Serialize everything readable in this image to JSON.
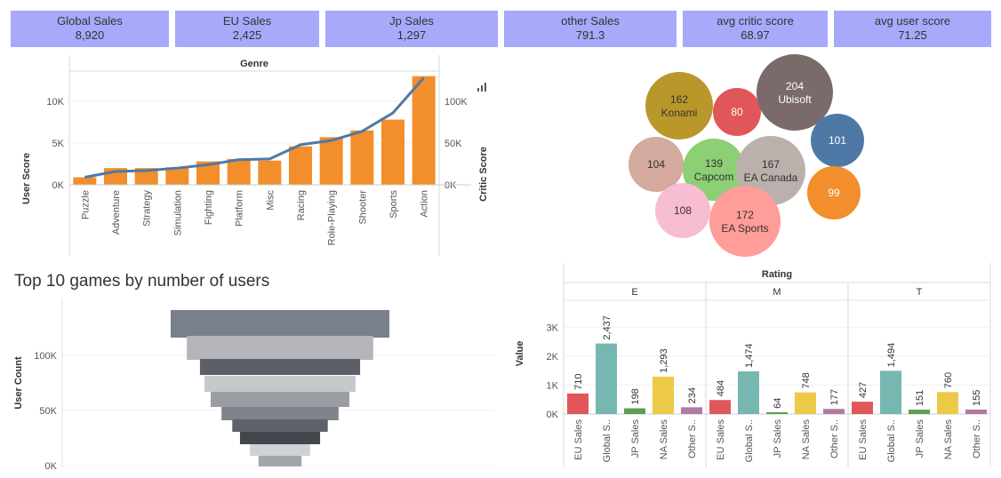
{
  "kpis": [
    {
      "label": "Global Sales",
      "value": "8,920"
    },
    {
      "label": "EU Sales",
      "value": "2,425"
    },
    {
      "label": "Jp Sales",
      "value": "1,297"
    },
    {
      "label": "other Sales",
      "value": "791.3"
    },
    {
      "label": "avg critic score",
      "value": "68.97"
    },
    {
      "label": "avg user score",
      "value": "71.25"
    }
  ],
  "genre_chart": {
    "title": "Genre",
    "ylabel_left": "User Score",
    "ylabel_right": "Critic Score",
    "left_ticks": [
      "0K",
      "5K",
      "10K"
    ],
    "right_ticks": [
      "0K",
      "50K",
      "100K"
    ],
    "bar_color": "#f28e2b",
    "line_color": "#4e79a7"
  },
  "bubble_chart": {
    "bubbles": [
      {
        "value": "162",
        "label": "Konami",
        "color": "#b9972a"
      },
      {
        "value": "80",
        "label": "",
        "color": "#e15759"
      },
      {
        "value": "204",
        "label": "Ubisoft",
        "color": "#7a6a6a"
      },
      {
        "value": "101",
        "label": "",
        "color": "#4e79a7"
      },
      {
        "value": "104",
        "label": "",
        "color": "#d4a99e"
      },
      {
        "value": "139",
        "label": "Capcom",
        "color": "#8ccf75"
      },
      {
        "value": "167",
        "label": "EA Canada",
        "color": "#bab0ac"
      },
      {
        "value": "99",
        "label": "",
        "color": "#f28e2b"
      },
      {
        "value": "108",
        "label": "",
        "color": "#f8bcd3"
      },
      {
        "value": "172",
        "label": "EA Sports",
        "color": "#ff9d9a"
      }
    ]
  },
  "funnel": {
    "title": "Top 10 games by number of users",
    "ylabel": "User Count",
    "ticks": [
      "0K",
      "50K",
      "100K"
    ]
  },
  "rating_chart": {
    "title": "Rating",
    "ylabel": "Value",
    "ticks": [
      "0K",
      "1K",
      "2K",
      "3K"
    ],
    "categories": [
      "EU Sales",
      "Global S..",
      "JP Sales",
      "NA Sales",
      "Other S.."
    ],
    "colors": [
      "#e15759",
      "#76b7b2",
      "#59a14f",
      "#edc948",
      "#b07aa1"
    ]
  },
  "chart_data": [
    {
      "type": "bar",
      "title": "Genre",
      "categories": [
        "Puzzle",
        "Adventure",
        "Strategy",
        "Simulation",
        "Fighting",
        "Platform",
        "Misc",
        "Racing",
        "Role-Playing",
        "Shooter",
        "Sports",
        "Action"
      ],
      "series": [
        {
          "name": "User Score",
          "values": [
            900,
            2000,
            2000,
            2100,
            2800,
            3100,
            2900,
            4600,
            5700,
            6500,
            7800,
            13000
          ]
        },
        {
          "name": "Critic Score",
          "values": [
            9000,
            16000,
            17000,
            20000,
            24000,
            30000,
            31000,
            48000,
            53000,
            64000,
            86000,
            128000
          ]
        }
      ],
      "ylim_left": [
        0,
        13500
      ],
      "ylim_right": [
        0,
        135000
      ]
    },
    {
      "type": "bubble",
      "values": [
        162,
        80,
        204,
        101,
        104,
        139,
        167,
        99,
        108,
        172
      ],
      "labels": [
        "Konami",
        "",
        "Ubisoft",
        "",
        "",
        "Capcom",
        "EA Canada",
        "",
        "",
        "EA Sports"
      ]
    },
    {
      "type": "bar",
      "title": "Top 10 games by number of users",
      "ylabel": "User Count",
      "values": [
        142000,
        121000,
        104000,
        98000,
        90000,
        76000,
        62000,
        52000,
        39000,
        28000
      ],
      "ylim": [
        0,
        145000
      ]
    },
    {
      "type": "bar",
      "title": "Rating",
      "ylabel": "Value",
      "categories": [
        "EU Sales",
        "Global S..",
        "JP Sales",
        "NA Sales",
        "Other S.."
      ],
      "series": [
        {
          "name": "E",
          "values": [
            710,
            2437,
            198,
            1293,
            234
          ]
        },
        {
          "name": "M",
          "values": [
            484,
            1474,
            64,
            748,
            177
          ]
        },
        {
          "name": "T",
          "values": [
            427,
            1494,
            151,
            760,
            155
          ]
        }
      ],
      "ylim": [
        0,
        3500
      ]
    }
  ]
}
